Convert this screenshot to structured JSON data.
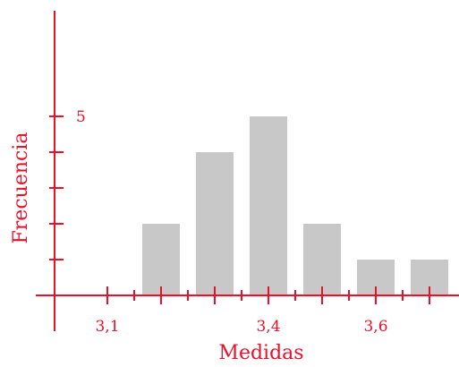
{
  "chart_data": {
    "type": "bar",
    "title": "",
    "xlabel": "Medidas",
    "ylabel": "Frecuencia",
    "categories": [
      "3,1",
      "3,2",
      "3,3",
      "3,4",
      "3,5",
      "3,6",
      "3,7"
    ],
    "values": [
      0,
      2,
      4,
      5,
      2,
      1,
      1
    ],
    "x_numeric": [
      3.1,
      3.2,
      3.3,
      3.4,
      3.5,
      3.6,
      3.7
    ],
    "x_tick_labels": [
      {
        "x": 3.1,
        "text": "3,1"
      },
      {
        "x": 3.4,
        "text": "3,4"
      },
      {
        "x": 3.6,
        "text": "3,6"
      }
    ],
    "y_tick_labels": [
      {
        "y": 5,
        "text": "5"
      }
    ],
    "ylim": [
      0,
      8
    ],
    "xlim": [
      3.1,
      3.8
    ],
    "grid": false,
    "colors": {
      "axis": "#e8102a",
      "bar": "#c8c8c8",
      "text": "#e8102a"
    }
  }
}
